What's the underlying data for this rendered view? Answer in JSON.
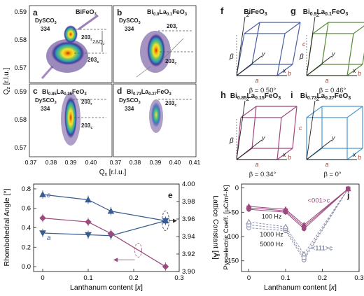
{
  "panels": {
    "rsm": {
      "ylabel": "Q_z [r.l.u.]",
      "xlabel": "Q_x [r.l.u.]",
      "x_ticks": [
        "0.37",
        "0.38",
        "0.39",
        "0.40",
        "0.41",
        "0.37",
        "0.38",
        "0.39",
        "0.40",
        "0.41"
      ],
      "y_ticks_top": [
        "0.59",
        "0.58",
        "0.57"
      ],
      "y_ticks_bottom": [
        "0.59",
        "0.58",
        "0.57"
      ],
      "a": {
        "letter": "a",
        "material": "BiFeO3",
        "substrate": "DySCO3",
        "peak": "334",
        "r1": "203r",
        "r2": "203c",
        "delta": "2ΔQz"
      },
      "b": {
        "letter": "b",
        "material": "Bi0.9La0.1FeO3",
        "substrate": "DySCO3",
        "peak": "334",
        "r1": "203r",
        "r2": "203c"
      },
      "c": {
        "letter": "c",
        "material": "Bi0.85La0.15FeO3",
        "substrate": "DySCO3",
        "peak": "334",
        "r1": "203r",
        "r2": "203c"
      },
      "d": {
        "letter": "d",
        "material": "Bi0.73La0.27FeO3",
        "substrate": "DySCO3",
        "peak": "334",
        "r1": "203c"
      }
    },
    "cells": [
      {
        "letter": "f",
        "title": "BiFeO3",
        "beta": "β = 0.50°",
        "color": "#4a5fa0"
      },
      {
        "letter": "g",
        "title": "Bi0.9La0.1FeO3",
        "beta": "β = 0.46°",
        "color": "#5a8a3c"
      },
      {
        "letter": "h",
        "title": "Bi0.85La0.15FeO3",
        "beta": "β = 0.34°",
        "color": "#a0467f"
      },
      {
        "letter": "i",
        "title": "Bi0.73La0.27FeO3",
        "beta": "β = 0°",
        "color": "#4a9ad0"
      }
    ],
    "cell_axis_labels": {
      "a": "a",
      "b": "b",
      "c": "c",
      "x": "x",
      "y": "y",
      "z": "z",
      "beta": "β"
    }
  },
  "chart_data": [
    {
      "type": "line",
      "panel": "e",
      "xlabel": "Lanthanum content [x]",
      "ylabel": "Rhombohedral Angle [°]",
      "y2label": "Lattice Constant [Å]",
      "x_ticks": [
        "0",
        "0.1",
        "0.2",
        "0.3"
      ],
      "y_ticks": [
        "0.0",
        "0.2",
        "0.4",
        "0.6",
        "0.8"
      ],
      "y2_ticks": [
        "3.90",
        "3.92",
        "3.94",
        "3.96",
        "3.98",
        "4.00"
      ],
      "xlim": [
        -0.02,
        0.3
      ],
      "ylim": [
        -0.05,
        0.85
      ],
      "y2lim": [
        3.9,
        4.0
      ],
      "annotations": {
        "c": "c",
        "a": "a"
      },
      "series": [
        {
          "axis": "right",
          "color": "#3b5c8f",
          "marker": "triangle-up",
          "x": [
            0,
            0.1,
            0.15,
            0.27
          ],
          "values": [
            3.988,
            3.982,
            3.969,
            3.958
          ]
        },
        {
          "axis": "right",
          "color": "#3b5c8f",
          "marker": "triangle-down",
          "x": [
            0,
            0.1,
            0.15,
            0.27
          ],
          "values": [
            3.944,
            3.942,
            3.941,
            3.958
          ]
        },
        {
          "axis": "left",
          "color": "#9b4a7d",
          "marker": "diamond",
          "x": [
            0,
            0.1,
            0.15,
            0.27
          ],
          "values": [
            0.5,
            0.46,
            0.34,
            0.0
          ]
        }
      ]
    },
    {
      "type": "line",
      "panel": "j",
      "xlabel": "Lanthanum content [x]",
      "ylabel": "Pyroelectric Coeff. [μC/m²-K]",
      "x_ticks": [
        "0",
        "0.1",
        "0.2",
        "0.3"
      ],
      "y_ticks": [
        "-150",
        "-100",
        "-50",
        "0"
      ],
      "xlim": [
        -0.02,
        0.3
      ],
      "ylim": [
        -172,
        8
      ],
      "labels": {
        "f5000": "5000 Hz",
        "f1000": "1000 Hz",
        "f100": "100 Hz",
        "dir111": "<111>c",
        "dir001": "<001>c"
      },
      "series": [
        {
          "color": "#8a8fa8",
          "marker": "open-circle",
          "dashed": true,
          "x": [
            0,
            0.1,
            0.15,
            0.27
          ],
          "values": [
            -82,
            -88,
            -148,
            -2
          ]
        },
        {
          "color": "#8a8fa8",
          "marker": "open-square",
          "dashed": true,
          "x": [
            0,
            0.1,
            0.15,
            0.27
          ],
          "values": [
            -76,
            -84,
            -143,
            -2
          ]
        },
        {
          "color": "#8a8fa8",
          "marker": "open-triangle",
          "dashed": true,
          "x": [
            0,
            0.1,
            0.15,
            0.27
          ],
          "values": [
            -70,
            -80,
            -136,
            -2
          ]
        },
        {
          "color": "#9b4a7d",
          "marker": "circle",
          "dashed": false,
          "x": [
            0,
            0.1,
            0.15,
            0.27
          ],
          "values": [
            -44,
            -50,
            -84,
            -2
          ]
        },
        {
          "color": "#9b4a7d",
          "marker": "square",
          "dashed": false,
          "x": [
            0,
            0.1,
            0.15,
            0.27
          ],
          "values": [
            -41,
            -47,
            -80,
            -2
          ]
        },
        {
          "color": "#9b4a7d",
          "marker": "triangle-up",
          "dashed": false,
          "x": [
            0,
            0.1,
            0.15,
            0.27
          ],
          "values": [
            -38,
            -44,
            -76,
            -2
          ]
        }
      ]
    }
  ]
}
